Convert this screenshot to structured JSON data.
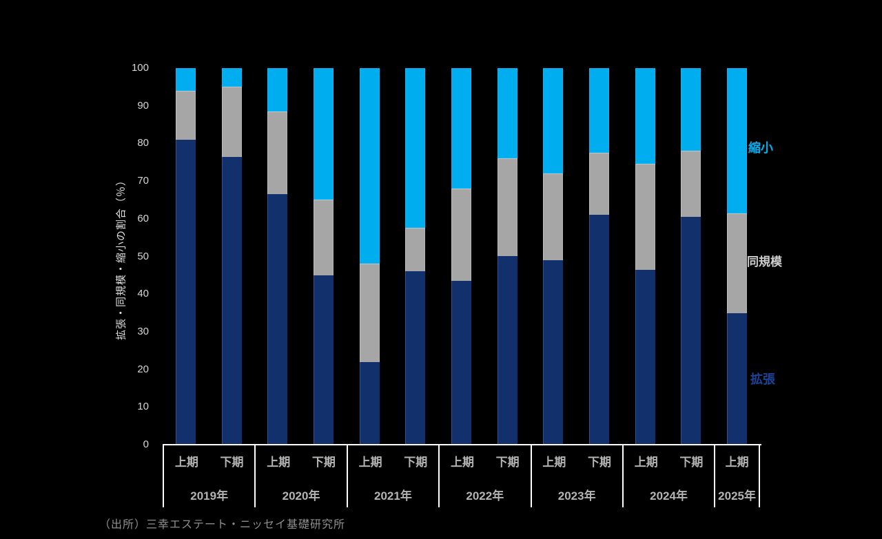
{
  "background_color": "#000000",
  "colors": {
    "expand": "#12306B",
    "same": "#A6A6A6",
    "shrink": "#00AEEF",
    "legend_expand_text": "#1C4499",
    "legend_same_text": "#CFCFCF",
    "legend_shrink_text": "#00AEEF",
    "axis_line": "#FFFFFF",
    "tick_text": "#D6D6D6"
  },
  "y_axis": {
    "title": "拡張・同規模・縮小の割合（％）",
    "ticks": [
      "0",
      "10",
      "20",
      "30",
      "40",
      "50",
      "60",
      "70",
      "80",
      "90",
      "100"
    ],
    "min": 0,
    "max": 100
  },
  "legend": {
    "shrink": "縮小",
    "same": "同規模",
    "expand": "拡張"
  },
  "source": "（出所）三幸エステート・ニッセイ基礎研究所",
  "chart_data": {
    "type": "bar",
    "stacked": true,
    "unit": "%",
    "ylim": [
      0,
      100
    ],
    "title": "",
    "xlabel": "",
    "ylabel": "拡張・同規模・縮小の割合（％）",
    "legend_position": "right",
    "grid": false,
    "categories": [
      "2019年上期",
      "2019年下期",
      "2020年上期",
      "2020年下期",
      "2021年上期",
      "2021年下期",
      "2022年上期",
      "2022年下期",
      "2023年上期",
      "2023年下期",
      "2024年上期",
      "2024年下期",
      "2025年上期"
    ],
    "groups": [
      {
        "year": "2019年",
        "periods": [
          "上期",
          "下期"
        ]
      },
      {
        "year": "2020年",
        "periods": [
          "上期",
          "下期"
        ]
      },
      {
        "year": "2021年",
        "periods": [
          "上期",
          "下期"
        ]
      },
      {
        "year": "2022年",
        "periods": [
          "上期",
          "下期"
        ]
      },
      {
        "year": "2023年",
        "periods": [
          "上期",
          "下期"
        ]
      },
      {
        "year": "2024年",
        "periods": [
          "上期",
          "下期"
        ]
      },
      {
        "year": "2025年",
        "periods": [
          "上期"
        ]
      }
    ],
    "series": [
      {
        "name": "拡張",
        "color_key": "expand",
        "values": [
          81,
          76.5,
          66.5,
          45,
          22,
          46,
          43.5,
          50,
          49,
          61,
          46.5,
          60.5,
          35
        ]
      },
      {
        "name": "同規模",
        "color_key": "same",
        "values": [
          13,
          18.5,
          22,
          20,
          26,
          11.5,
          24.5,
          26,
          23,
          16.5,
          28,
          17.5,
          26.5
        ]
      },
      {
        "name": "縮小",
        "color_key": "shrink",
        "values": [
          6,
          5,
          11.5,
          35,
          52,
          42.5,
          32,
          24,
          28,
          22.5,
          25.5,
          22,
          38.5
        ]
      }
    ]
  }
}
